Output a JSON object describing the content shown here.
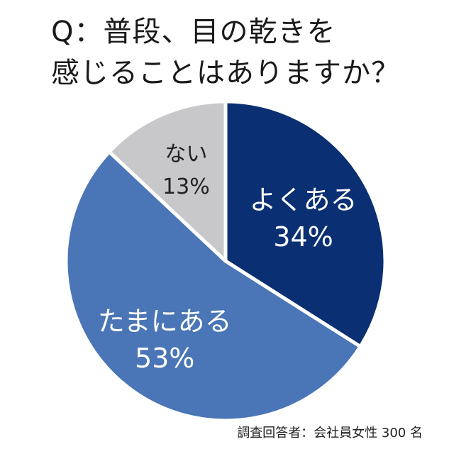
{
  "question": {
    "line1": "Q：普段、目の乾きを",
    "line2": "感じることはありますか？"
  },
  "chart_data": {
    "type": "pie",
    "categories": [
      "よくある",
      "たまにある",
      "ない"
    ],
    "values": [
      34,
      53,
      13
    ],
    "value_labels": [
      "34%",
      "53%",
      "13%"
    ],
    "colors": [
      "#0a2f72",
      "#4a75b6",
      "#c8c8ca"
    ],
    "label_colors": [
      "#ffffff",
      "#ffffff",
      "#222222"
    ],
    "start": "12 o'clock",
    "direction": "clockwise"
  },
  "footnote": "調査回答者：会社員女性 300 名"
}
